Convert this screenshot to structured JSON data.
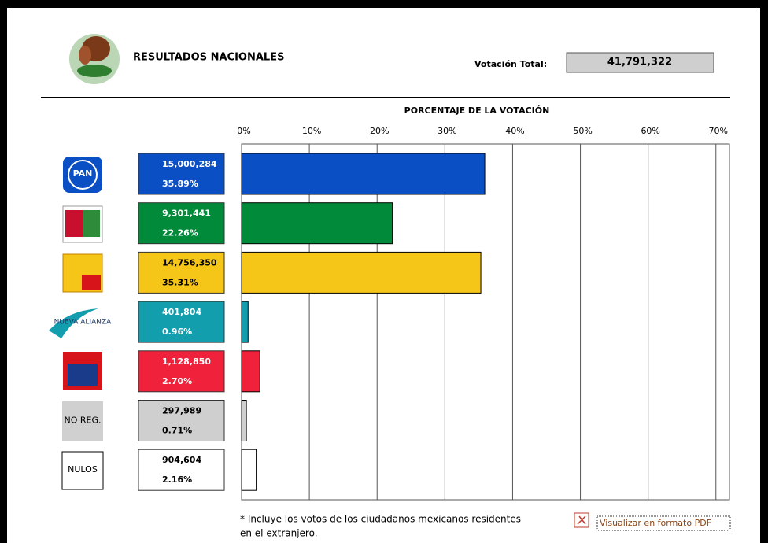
{
  "header": {
    "title": "RESULTADOS NACIONALES",
    "total_label": "Votación Total:",
    "total_value": "41,791,322"
  },
  "chart_data": {
    "type": "bar",
    "orientation": "horizontal",
    "title": "PORCENTAJE DE LA VOTACIÓN",
    "categories": [
      "PAN",
      null,
      null,
      "NUEVA ALIANZA",
      null,
      "NO REG.",
      "NULOS"
    ],
    "values": [
      35.89,
      22.26,
      35.31,
      0.96,
      2.7,
      0.71,
      2.16
    ],
    "value_labels": [
      "35.89%",
      "22.26%",
      "35.31%",
      "0.96%",
      "2.70%",
      "0.71%",
      "2.16%"
    ],
    "vote_labels": [
      "15,000,284",
      "9,301,441",
      "14,756,350",
      "401,804",
      "1,128,850",
      "297,989",
      "904,604"
    ],
    "colors": [
      "#0a4fc4",
      "#008a3a",
      "#f5c518",
      "#139eae",
      "#f0213a",
      "#cfcfcf",
      "#ffffff"
    ],
    "xlim": [
      0,
      72
    ],
    "xticks": [
      {
        "value": 0,
        "label": "0%"
      },
      {
        "value": 10,
        "label": "10%"
      },
      {
        "value": 20,
        "label": "20%"
      },
      {
        "value": 30,
        "label": "30%"
      },
      {
        "value": 40,
        "label": "40%"
      },
      {
        "value": 50,
        "label": "50%"
      },
      {
        "value": 60,
        "label": "60%"
      },
      {
        "value": 70,
        "label": "70%"
      }
    ],
    "grid": true
  },
  "footnote": [
    "* Incluye los votos de los ciudadanos mexicanos residentes",
    "en el extranjero."
  ],
  "pdf_link": "Visualizar en formato PDF"
}
